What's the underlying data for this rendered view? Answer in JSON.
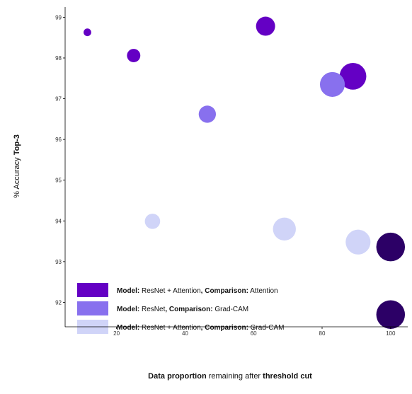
{
  "chart_data": {
    "type": "scatter",
    "xlim": [
      5,
      105
    ],
    "ylim": [
      91.4,
      99.25
    ],
    "x_ticks": [
      20,
      40,
      60,
      80,
      100
    ],
    "y_ticks": [
      92,
      93,
      94,
      95,
      96,
      97,
      98,
      99
    ],
    "grid": false,
    "legend_position": "lower-left",
    "xlabel_parts": [
      {
        "text": "Data proportion",
        "bold": true
      },
      {
        "text": " remaining after ",
        "bold": false
      },
      {
        "text": "threshold cut",
        "bold": true
      }
    ],
    "ylabel_parts": [
      {
        "text": "% Accuracy ",
        "bold": false
      },
      {
        "text": "Top-3",
        "bold": true
      }
    ],
    "series": [
      {
        "legend_parts": [
          {
            "text": "Model:",
            "bold": true
          },
          {
            "text": " ResNet + Attention",
            "bold": false
          },
          {
            "text": ", Comparison:",
            "bold": true
          },
          {
            "text": " Attention",
            "bold": false
          }
        ],
        "color": "#6400c4",
        "points": [
          {
            "x": 11.5,
            "y": 98.63,
            "size": 2
          },
          {
            "x": 25,
            "y": 98.06,
            "size": 3.5
          },
          {
            "x": 63.5,
            "y": 98.78,
            "size": 5
          },
          {
            "x": 89,
            "y": 97.55,
            "size": 7
          }
        ]
      },
      {
        "legend_parts": [
          {
            "text": "Model:",
            "bold": true
          },
          {
            "text": " ResNet",
            "bold": false
          },
          {
            "text": ", Comparison:",
            "bold": true
          },
          {
            "text": " Grad-CAM",
            "bold": false
          }
        ],
        "color": "#8870ee",
        "points": [
          {
            "x": 46.5,
            "y": 96.62,
            "size": 4.5
          },
          {
            "x": 83,
            "y": 97.35,
            "size": 6.5
          }
        ]
      },
      {
        "legend_parts": [
          {
            "text": "Model:",
            "bold": true
          },
          {
            "text": " ResNet + Attention",
            "bold": false
          },
          {
            "text": ", Comparison:",
            "bold": true
          },
          {
            "text": " Grad-CAM",
            "bold": false
          }
        ],
        "color": "#d0d4f8",
        "points": [
          {
            "x": 30.5,
            "y": 93.99,
            "size": 4
          },
          {
            "x": 69,
            "y": 93.8,
            "size": 6
          },
          {
            "x": 90.5,
            "y": 93.48,
            "size": 6.5
          }
        ]
      },
      {
        "color": "#2c0066",
        "points": [
          {
            "x": 100,
            "y": 93.36,
            "size": 7.5
          },
          {
            "x": 100,
            "y": 91.7,
            "size": 7.5
          }
        ]
      }
    ]
  }
}
